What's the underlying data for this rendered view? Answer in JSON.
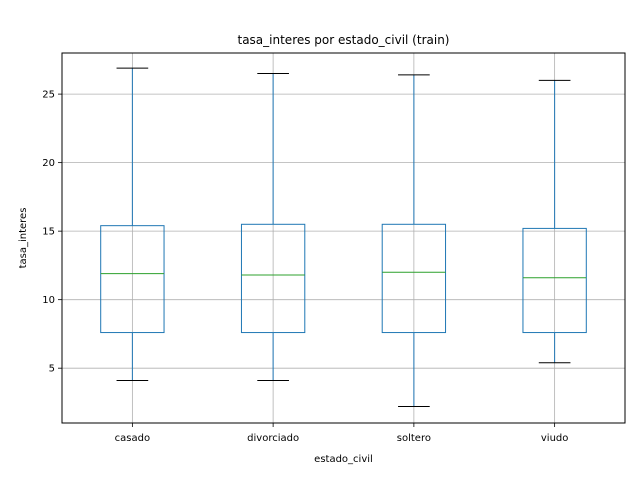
{
  "chart_data": {
    "type": "box",
    "title": "tasa_interes por estado_civil (train)",
    "xlabel": "estado_civil",
    "ylabel": "tasa_interes",
    "ylim": [
      1.0,
      28.0
    ],
    "yticks": [
      5,
      10,
      15,
      20,
      25
    ],
    "grid": true,
    "categories": [
      "casado",
      "divorciado",
      "soltero",
      "viudo"
    ],
    "boxes": [
      {
        "category": "casado",
        "whisker_low": 4.1,
        "q1": 7.6,
        "median": 11.9,
        "q3": 15.4,
        "whisker_high": 26.9
      },
      {
        "category": "divorciado",
        "whisker_low": 4.1,
        "q1": 7.6,
        "median": 11.8,
        "q3": 15.5,
        "whisker_high": 26.5
      },
      {
        "category": "soltero",
        "whisker_low": 2.2,
        "q1": 7.6,
        "median": 12.0,
        "q3": 15.5,
        "whisker_high": 26.4
      },
      {
        "category": "viudo",
        "whisker_low": 5.4,
        "q1": 7.6,
        "median": 11.6,
        "q3": 15.2,
        "whisker_high": 26.0
      }
    ],
    "colors": {
      "box": "#1f77b4",
      "median": "#2ca02c",
      "whisker_cap": "#000000",
      "grid": "#b0b0b0",
      "axes": "#000000"
    }
  }
}
